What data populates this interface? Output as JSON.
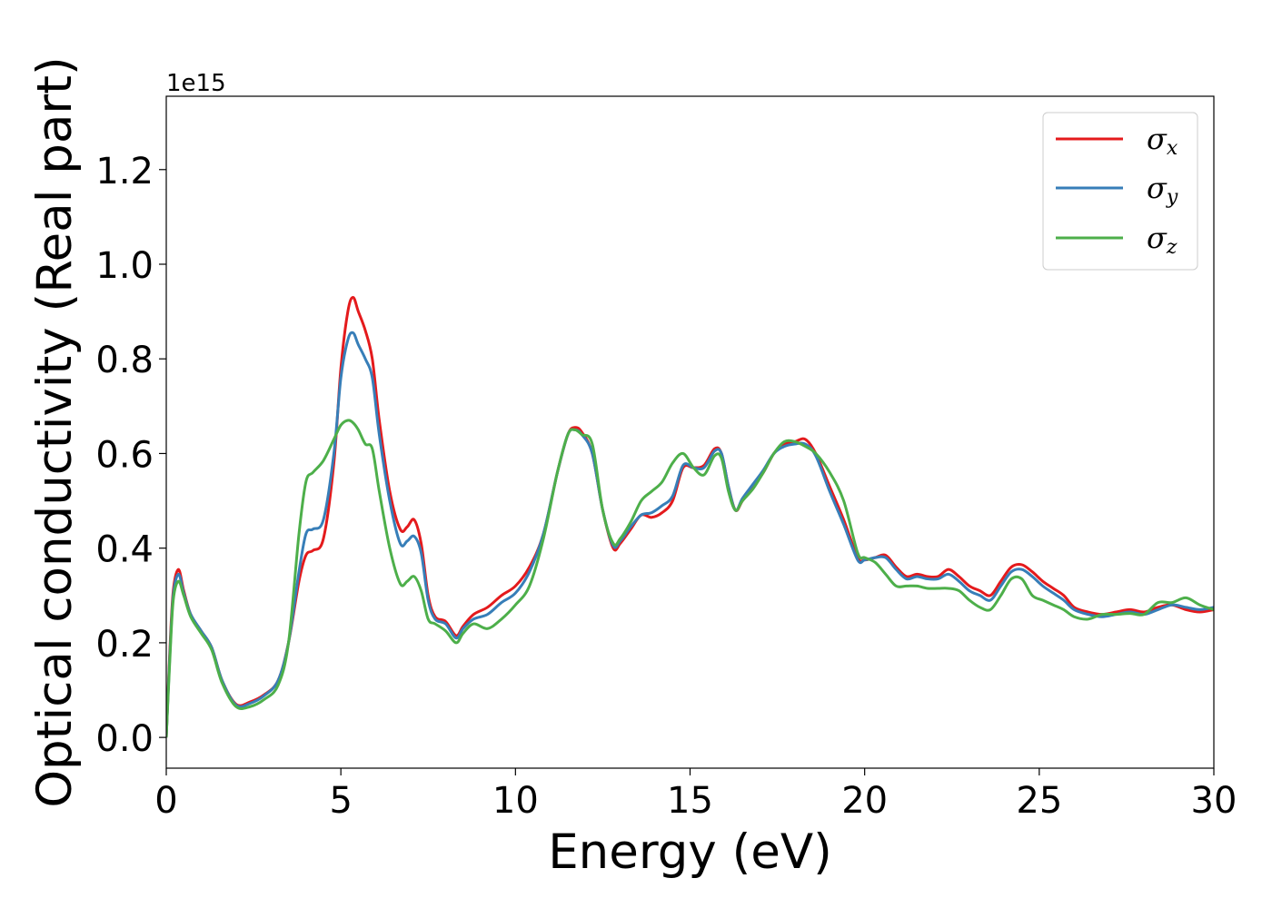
{
  "chart_data": {
    "type": "line",
    "xlabel": "Energy (eV)",
    "ylabel": "Optical conductivity (Real part)",
    "y_offset_label": "1e15",
    "xlim": [
      0,
      30
    ],
    "ylim": [
      -0.065,
      1.355
    ],
    "x_ticks": [
      0,
      5,
      10,
      15,
      20,
      25,
      30
    ],
    "x_tick_labels": [
      "0",
      "5",
      "10",
      "15",
      "20",
      "25",
      "30"
    ],
    "y_ticks": [
      0.0,
      0.2,
      0.4,
      0.6,
      0.8,
      1.0,
      1.2
    ],
    "y_tick_labels": [
      "0.0",
      "0.2",
      "0.4",
      "0.6",
      "0.8",
      "1.0",
      "1.2"
    ],
    "grid": false,
    "legend_position": "top-right",
    "series": [
      {
        "name": "σx",
        "symbol": "σ",
        "subscript": "x",
        "color": "#e41a1c",
        "x": [
          0,
          0.1,
          0.2,
          0.35,
          0.5,
          0.7,
          1.0,
          1.3,
          1.6,
          2.0,
          2.4,
          2.8,
          3.2,
          3.5,
          3.8,
          4.0,
          4.2,
          4.5,
          4.8,
          5.0,
          5.2,
          5.35,
          5.5,
          5.7,
          5.9,
          6.1,
          6.4,
          6.7,
          6.9,
          7.1,
          7.3,
          7.5,
          7.7,
          8.0,
          8.3,
          8.5,
          8.8,
          9.2,
          9.6,
          10.0,
          10.4,
          10.8,
          11.2,
          11.5,
          11.7,
          11.9,
          12.2,
          12.5,
          12.8,
          13.0,
          13.3,
          13.6,
          13.9,
          14.2,
          14.5,
          14.8,
          15.1,
          15.4,
          15.7,
          15.9,
          16.1,
          16.3,
          16.5,
          16.8,
          17.1,
          17.4,
          17.7,
          18.0,
          18.3,
          18.6,
          19.0,
          19.4,
          19.8,
          20.0,
          20.3,
          20.6,
          20.9,
          21.2,
          21.5,
          21.8,
          22.1,
          22.4,
          22.7,
          23.0,
          23.3,
          23.6,
          23.9,
          24.2,
          24.5,
          24.8,
          25.1,
          25.4,
          25.7,
          26.0,
          26.4,
          26.8,
          27.2,
          27.6,
          28.0,
          28.4,
          28.8,
          29.2,
          29.6,
          30.0
        ],
        "values": [
          0.0,
          0.18,
          0.31,
          0.355,
          0.31,
          0.26,
          0.225,
          0.19,
          0.12,
          0.07,
          0.075,
          0.09,
          0.12,
          0.2,
          0.33,
          0.385,
          0.395,
          0.42,
          0.58,
          0.78,
          0.9,
          0.93,
          0.9,
          0.86,
          0.8,
          0.67,
          0.52,
          0.44,
          0.445,
          0.46,
          0.41,
          0.3,
          0.255,
          0.245,
          0.215,
          0.235,
          0.26,
          0.275,
          0.3,
          0.32,
          0.36,
          0.43,
          0.56,
          0.64,
          0.655,
          0.645,
          0.6,
          0.48,
          0.4,
          0.41,
          0.44,
          0.47,
          0.465,
          0.475,
          0.5,
          0.57,
          0.57,
          0.575,
          0.61,
          0.6,
          0.53,
          0.48,
          0.5,
          0.53,
          0.56,
          0.6,
          0.62,
          0.625,
          0.63,
          0.6,
          0.53,
          0.46,
          0.38,
          0.375,
          0.38,
          0.385,
          0.36,
          0.34,
          0.345,
          0.34,
          0.34,
          0.355,
          0.34,
          0.32,
          0.31,
          0.3,
          0.33,
          0.36,
          0.365,
          0.35,
          0.33,
          0.315,
          0.3,
          0.275,
          0.265,
          0.26,
          0.265,
          0.27,
          0.265,
          0.275,
          0.28,
          0.27,
          0.265,
          0.27
        ]
      },
      {
        "name": "σy",
        "symbol": "σ",
        "subscript": "y",
        "color": "#377eb8",
        "x": [
          0,
          0.1,
          0.2,
          0.35,
          0.5,
          0.7,
          1.0,
          1.3,
          1.6,
          2.0,
          2.4,
          2.8,
          3.2,
          3.5,
          3.8,
          4.0,
          4.2,
          4.5,
          4.8,
          5.0,
          5.2,
          5.35,
          5.5,
          5.7,
          5.9,
          6.1,
          6.4,
          6.7,
          6.9,
          7.1,
          7.3,
          7.5,
          7.7,
          8.0,
          8.3,
          8.5,
          8.8,
          9.2,
          9.6,
          10.0,
          10.4,
          10.8,
          11.2,
          11.5,
          11.7,
          11.9,
          12.2,
          12.5,
          12.8,
          13.0,
          13.3,
          13.6,
          13.9,
          14.2,
          14.5,
          14.8,
          15.1,
          15.4,
          15.7,
          15.9,
          16.1,
          16.3,
          16.5,
          16.8,
          17.1,
          17.4,
          17.7,
          18.0,
          18.3,
          18.6,
          19.0,
          19.4,
          19.8,
          20.0,
          20.3,
          20.6,
          20.9,
          21.2,
          21.5,
          21.8,
          22.1,
          22.4,
          22.7,
          23.0,
          23.3,
          23.6,
          23.9,
          24.2,
          24.5,
          24.8,
          25.1,
          25.4,
          25.7,
          26.0,
          26.4,
          26.8,
          27.2,
          27.6,
          28.0,
          28.4,
          28.8,
          29.2,
          29.6,
          30.0
        ],
        "values": [
          0.0,
          0.17,
          0.3,
          0.345,
          0.305,
          0.26,
          0.225,
          0.19,
          0.12,
          0.068,
          0.072,
          0.088,
          0.12,
          0.2,
          0.35,
          0.43,
          0.44,
          0.46,
          0.6,
          0.76,
          0.84,
          0.855,
          0.83,
          0.8,
          0.76,
          0.64,
          0.5,
          0.41,
          0.415,
          0.425,
          0.39,
          0.29,
          0.25,
          0.24,
          0.21,
          0.23,
          0.25,
          0.26,
          0.285,
          0.305,
          0.35,
          0.43,
          0.56,
          0.64,
          0.65,
          0.64,
          0.6,
          0.48,
          0.405,
          0.415,
          0.445,
          0.47,
          0.475,
          0.49,
          0.51,
          0.575,
          0.57,
          0.57,
          0.605,
          0.6,
          0.53,
          0.48,
          0.505,
          0.535,
          0.565,
          0.6,
          0.615,
          0.62,
          0.62,
          0.595,
          0.52,
          0.45,
          0.375,
          0.375,
          0.38,
          0.38,
          0.355,
          0.335,
          0.34,
          0.335,
          0.335,
          0.345,
          0.33,
          0.31,
          0.3,
          0.29,
          0.32,
          0.35,
          0.355,
          0.34,
          0.32,
          0.305,
          0.29,
          0.27,
          0.26,
          0.255,
          0.26,
          0.265,
          0.26,
          0.27,
          0.28,
          0.275,
          0.27,
          0.275
        ]
      },
      {
        "name": "σz",
        "symbol": "σ",
        "subscript": "z",
        "color": "#4daf4a",
        "x": [
          0,
          0.1,
          0.2,
          0.35,
          0.5,
          0.7,
          1.0,
          1.3,
          1.6,
          2.0,
          2.4,
          2.8,
          3.2,
          3.5,
          3.8,
          4.0,
          4.2,
          4.5,
          4.8,
          5.0,
          5.2,
          5.35,
          5.5,
          5.7,
          5.9,
          6.1,
          6.4,
          6.7,
          6.9,
          7.1,
          7.3,
          7.5,
          7.7,
          8.0,
          8.3,
          8.5,
          8.8,
          9.2,
          9.6,
          10.0,
          10.4,
          10.8,
          11.2,
          11.5,
          11.7,
          11.9,
          12.2,
          12.5,
          12.8,
          13.0,
          13.3,
          13.6,
          13.9,
          14.2,
          14.5,
          14.8,
          15.1,
          15.4,
          15.7,
          15.9,
          16.1,
          16.3,
          16.5,
          16.8,
          17.1,
          17.4,
          17.7,
          18.0,
          18.3,
          18.6,
          19.0,
          19.4,
          19.8,
          20.0,
          20.3,
          20.6,
          20.9,
          21.2,
          21.5,
          21.8,
          22.1,
          22.4,
          22.7,
          23.0,
          23.3,
          23.6,
          23.9,
          24.2,
          24.5,
          24.8,
          25.1,
          25.4,
          25.7,
          26.0,
          26.4,
          26.8,
          27.2,
          27.6,
          28.0,
          28.4,
          28.8,
          29.2,
          29.6,
          30.0
        ],
        "values": [
          0.0,
          0.16,
          0.29,
          0.33,
          0.3,
          0.255,
          0.22,
          0.185,
          0.115,
          0.065,
          0.065,
          0.08,
          0.11,
          0.2,
          0.43,
          0.54,
          0.56,
          0.585,
          0.63,
          0.66,
          0.67,
          0.665,
          0.65,
          0.62,
          0.61,
          0.52,
          0.4,
          0.325,
          0.33,
          0.34,
          0.31,
          0.25,
          0.24,
          0.225,
          0.2,
          0.22,
          0.24,
          0.23,
          0.25,
          0.28,
          0.32,
          0.42,
          0.56,
          0.64,
          0.65,
          0.64,
          0.62,
          0.48,
          0.41,
          0.42,
          0.455,
          0.5,
          0.52,
          0.54,
          0.58,
          0.6,
          0.57,
          0.555,
          0.595,
          0.59,
          0.52,
          0.48,
          0.5,
          0.525,
          0.56,
          0.6,
          0.625,
          0.625,
          0.615,
          0.6,
          0.56,
          0.5,
          0.39,
          0.38,
          0.37,
          0.345,
          0.32,
          0.32,
          0.32,
          0.315,
          0.315,
          0.315,
          0.31,
          0.29,
          0.275,
          0.27,
          0.3,
          0.335,
          0.335,
          0.3,
          0.29,
          0.28,
          0.27,
          0.255,
          0.25,
          0.26,
          0.26,
          0.262,
          0.26,
          0.285,
          0.285,
          0.295,
          0.28,
          0.27
        ]
      }
    ]
  }
}
